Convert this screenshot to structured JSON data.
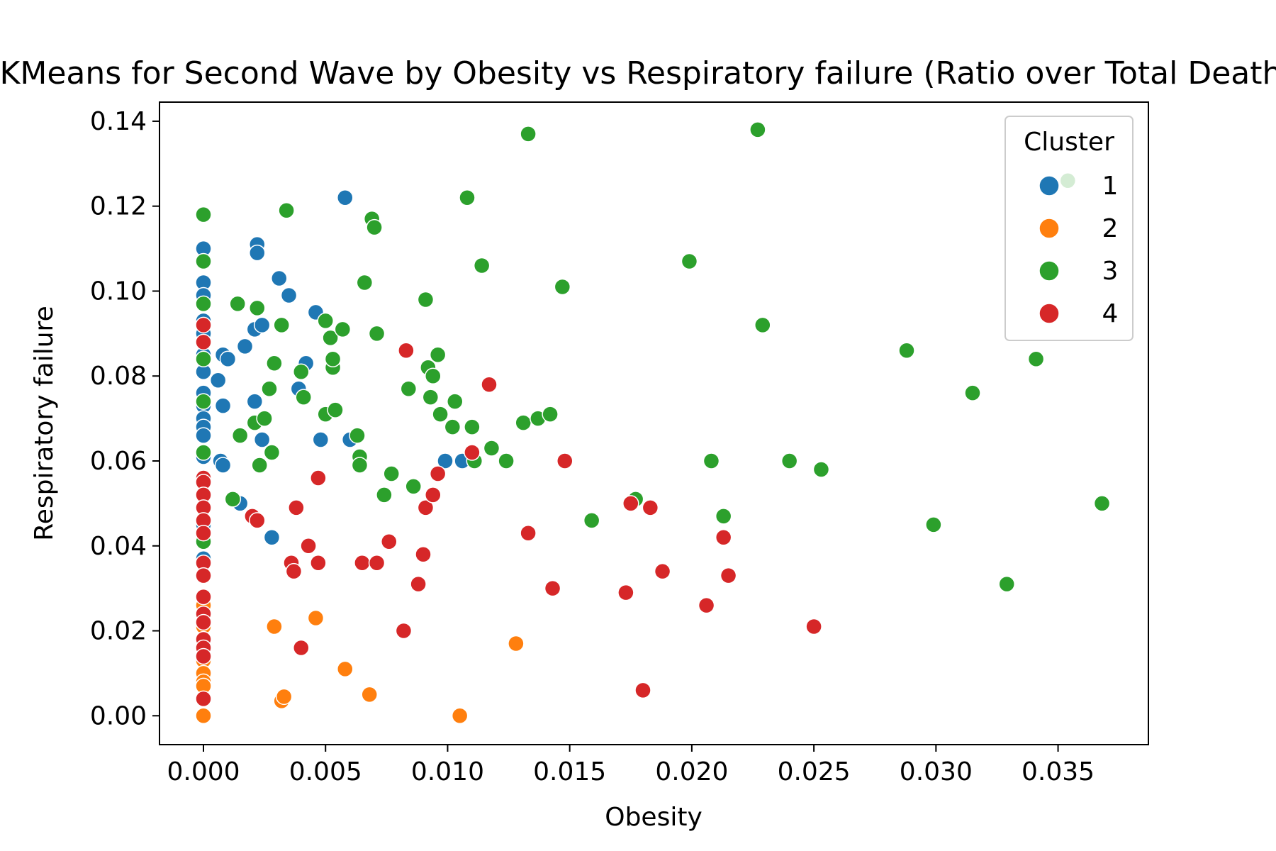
{
  "chart_data": {
    "type": "scatter",
    "title": "KMeans for Second Wave by Obesity vs Respiratory failure (Ratio over Total Deaths)",
    "xlabel": "Obesity",
    "ylabel": "Respiratory failure",
    "xlim": [
      -0.0018,
      0.0387
    ],
    "ylim": [
      -0.0068,
      0.1445
    ],
    "xticks": [
      0.0,
      0.005,
      0.01,
      0.015,
      0.02,
      0.025,
      0.03,
      0.035
    ],
    "xtick_labels": [
      "0.000",
      "0.005",
      "0.010",
      "0.015",
      "0.020",
      "0.025",
      "0.030",
      "0.035"
    ],
    "yticks": [
      0.0,
      0.02,
      0.04,
      0.06,
      0.08,
      0.1,
      0.12,
      0.14
    ],
    "ytick_labels": [
      "0.00",
      "0.02",
      "0.04",
      "0.06",
      "0.08",
      "0.10",
      "0.12",
      "0.14"
    ],
    "legend": {
      "title": "Cluster",
      "position": "top-right"
    },
    "series": [
      {
        "name": "1",
        "color": "#1f77b4",
        "points": [
          [
            0,
            0.11
          ],
          [
            0,
            0.102
          ],
          [
            0,
            0.099
          ],
          [
            0,
            0.093
          ],
          [
            0,
            0.09
          ],
          [
            0,
            0.085
          ],
          [
            0,
            0.081
          ],
          [
            0,
            0.076
          ],
          [
            0,
            0.073
          ],
          [
            0,
            0.07
          ],
          [
            0,
            0.068
          ],
          [
            0,
            0.066
          ],
          [
            0,
            0.062
          ],
          [
            0,
            0.061
          ],
          [
            0,
            0.045
          ],
          [
            0,
            0.037
          ],
          [
            0.0008,
            0.085
          ],
          [
            0.001,
            0.084
          ],
          [
            0.0006,
            0.079
          ],
          [
            0.0008,
            0.073
          ],
          [
            0.0007,
            0.06
          ],
          [
            0.0008,
            0.059
          ],
          [
            0.0015,
            0.05
          ],
          [
            0.0017,
            0.087
          ],
          [
            0.0021,
            0.091
          ],
          [
            0.0022,
            0.111
          ],
          [
            0.0022,
            0.109
          ],
          [
            0.0024,
            0.092
          ],
          [
            0.0021,
            0.074
          ],
          [
            0.0024,
            0.065
          ],
          [
            0.0028,
            0.042
          ],
          [
            0.0031,
            0.103
          ],
          [
            0.0035,
            0.099
          ],
          [
            0.0039,
            0.077
          ],
          [
            0.0042,
            0.083
          ],
          [
            0.0046,
            0.095
          ],
          [
            0.0048,
            0.065
          ],
          [
            0.0058,
            0.122
          ],
          [
            0.006,
            0.065
          ],
          [
            0.0099,
            0.06
          ],
          [
            0.0106,
            0.06
          ]
        ]
      },
      {
        "name": "2",
        "color": "#ff7f0e",
        "points": [
          [
            0,
            0.026
          ],
          [
            0,
            0.021
          ],
          [
            0,
            0.013
          ],
          [
            0,
            0.01
          ],
          [
            0,
            0.008
          ],
          [
            0,
            0.007
          ],
          [
            0,
            0.0
          ],
          [
            0.0029,
            0.021
          ],
          [
            0.0032,
            0.0035
          ],
          [
            0.0033,
            0.0045
          ],
          [
            0.0046,
            0.023
          ],
          [
            0.0058,
            0.011
          ],
          [
            0.0068,
            0.005
          ],
          [
            0.0105,
            0.0
          ],
          [
            0.0128,
            0.017
          ]
        ]
      },
      {
        "name": "3",
        "color": "#2ca02c",
        "points": [
          [
            0,
            0.118
          ],
          [
            0,
            0.107
          ],
          [
            0,
            0.097
          ],
          [
            0,
            0.084
          ],
          [
            0,
            0.074
          ],
          [
            0,
            0.062
          ],
          [
            0,
            0.041
          ],
          [
            0.0012,
            0.051
          ],
          [
            0.0014,
            0.097
          ],
          [
            0.0015,
            0.066
          ],
          [
            0.0021,
            0.069
          ],
          [
            0.0022,
            0.096
          ],
          [
            0.0023,
            0.059
          ],
          [
            0.0025,
            0.07
          ],
          [
            0.0027,
            0.077
          ],
          [
            0.0028,
            0.062
          ],
          [
            0.0029,
            0.083
          ],
          [
            0.0032,
            0.092
          ],
          [
            0.0034,
            0.119
          ],
          [
            0.004,
            0.081
          ],
          [
            0.0041,
            0.075
          ],
          [
            0.005,
            0.093
          ],
          [
            0.005,
            0.071
          ],
          [
            0.0052,
            0.089
          ],
          [
            0.0053,
            0.082
          ],
          [
            0.0053,
            0.084
          ],
          [
            0.0054,
            0.072
          ],
          [
            0.0057,
            0.091
          ],
          [
            0.0063,
            0.066
          ],
          [
            0.0064,
            0.061
          ],
          [
            0.0064,
            0.059
          ],
          [
            0.0066,
            0.102
          ],
          [
            0.0069,
            0.117
          ],
          [
            0.007,
            0.115
          ],
          [
            0.0071,
            0.09
          ],
          [
            0.0074,
            0.052
          ],
          [
            0.0077,
            0.057
          ],
          [
            0.0084,
            0.077
          ],
          [
            0.0086,
            0.054
          ],
          [
            0.0091,
            0.098
          ],
          [
            0.0092,
            0.082
          ],
          [
            0.0093,
            0.075
          ],
          [
            0.0094,
            0.08
          ],
          [
            0.0096,
            0.085
          ],
          [
            0.0097,
            0.071
          ],
          [
            0.0102,
            0.068
          ],
          [
            0.0103,
            0.074
          ],
          [
            0.0108,
            0.122
          ],
          [
            0.011,
            0.068
          ],
          [
            0.0111,
            0.06
          ],
          [
            0.0114,
            0.106
          ],
          [
            0.0118,
            0.063
          ],
          [
            0.0124,
            0.06
          ],
          [
            0.0131,
            0.069
          ],
          [
            0.0133,
            0.137
          ],
          [
            0.0137,
            0.07
          ],
          [
            0.0142,
            0.071
          ],
          [
            0.0147,
            0.101
          ],
          [
            0.0159,
            0.046
          ],
          [
            0.0177,
            0.051
          ],
          [
            0.0199,
            0.107
          ],
          [
            0.0208,
            0.06
          ],
          [
            0.0213,
            0.047
          ],
          [
            0.0227,
            0.138
          ],
          [
            0.0229,
            0.092
          ],
          [
            0.024,
            0.06
          ],
          [
            0.0253,
            0.058
          ],
          [
            0.0288,
            0.086
          ],
          [
            0.0299,
            0.045
          ],
          [
            0.0315,
            0.076
          ],
          [
            0.0329,
            0.031
          ],
          [
            0.0341,
            0.084
          ],
          [
            0.0354,
            0.126
          ],
          [
            0.0368,
            0.05
          ]
        ]
      },
      {
        "name": "4",
        "color": "#d62728",
        "points": [
          [
            0,
            0.092
          ],
          [
            0,
            0.088
          ],
          [
            0,
            0.056
          ],
          [
            0,
            0.055
          ],
          [
            0,
            0.052
          ],
          [
            0,
            0.049
          ],
          [
            0,
            0.046
          ],
          [
            0,
            0.043
          ],
          [
            0,
            0.036
          ],
          [
            0,
            0.033
          ],
          [
            0,
            0.028
          ],
          [
            0,
            0.024
          ],
          [
            0,
            0.022
          ],
          [
            0,
            0.018
          ],
          [
            0,
            0.016
          ],
          [
            0,
            0.014
          ],
          [
            0,
            0.004
          ],
          [
            0.002,
            0.047
          ],
          [
            0.0022,
            0.046
          ],
          [
            0.0036,
            0.036
          ],
          [
            0.0037,
            0.034
          ],
          [
            0.0038,
            0.049
          ],
          [
            0.004,
            0.016
          ],
          [
            0.0043,
            0.04
          ],
          [
            0.0047,
            0.036
          ],
          [
            0.0047,
            0.056
          ],
          [
            0.0065,
            0.036
          ],
          [
            0.0071,
            0.036
          ],
          [
            0.0076,
            0.041
          ],
          [
            0.0082,
            0.02
          ],
          [
            0.0083,
            0.086
          ],
          [
            0.0088,
            0.031
          ],
          [
            0.009,
            0.038
          ],
          [
            0.0091,
            0.049
          ],
          [
            0.0094,
            0.052
          ],
          [
            0.0096,
            0.057
          ],
          [
            0.011,
            0.062
          ],
          [
            0.0117,
            0.078
          ],
          [
            0.0133,
            0.043
          ],
          [
            0.0143,
            0.03
          ],
          [
            0.0148,
            0.06
          ],
          [
            0.0173,
            0.029
          ],
          [
            0.0175,
            0.05
          ],
          [
            0.018,
            0.006
          ],
          [
            0.0183,
            0.049
          ],
          [
            0.0188,
            0.034
          ],
          [
            0.0206,
            0.026
          ],
          [
            0.0213,
            0.042
          ],
          [
            0.0215,
            0.033
          ],
          [
            0.025,
            0.021
          ]
        ]
      }
    ]
  }
}
